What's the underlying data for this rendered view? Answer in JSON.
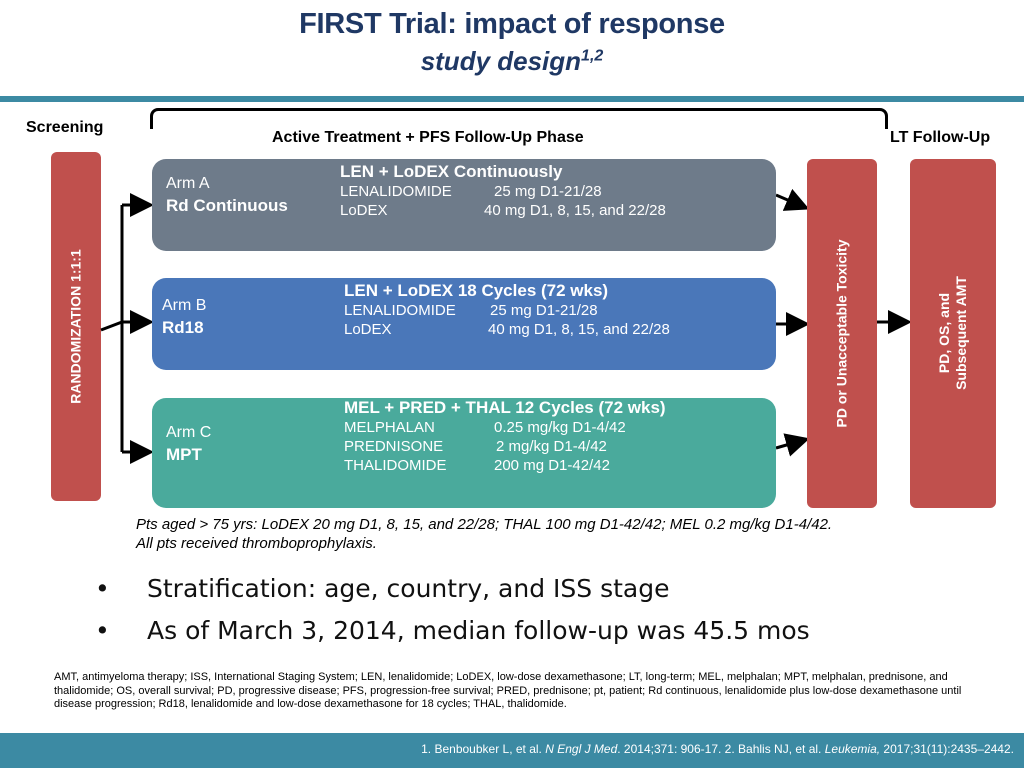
{
  "header": {
    "title": "FIRST Trial: impact of response",
    "subtitle": "study design",
    "subtitle_sup": "1,2"
  },
  "phases": {
    "screening": "Screening",
    "active": "Active Treatment + PFS Follow-Up Phase",
    "lt": "LT Follow-Up"
  },
  "randomization": "RANDOMIZATION 1:1:1",
  "pd_box": "PD or Unacceptable Toxicity",
  "lt_box": {
    "line1": "PD, OS, and",
    "line2": "Subsequent AMT"
  },
  "arms": [
    {
      "name": "Arm A",
      "short": "Rd Continuous",
      "regimen": "LEN + LoDEX Continuously",
      "drugs": [
        {
          "drug": "LENALIDOMIDE",
          "dose": "25 mg D1-21/28"
        },
        {
          "drug": "LoDEX",
          "dose": "40 mg D1, 8, 15, and 22/28"
        }
      ]
    },
    {
      "name": "Arm B",
      "short": "Rd18",
      "regimen": "LEN + LoDEX 18 Cycles (72 wks)",
      "drugs": [
        {
          "drug": "LENALIDOMIDE",
          "dose": "25 mg D1-21/28"
        },
        {
          "drug": "LoDEX",
          "dose": "40 mg D1, 8, 15, and 22/28"
        }
      ]
    },
    {
      "name": "Arm C",
      "short": "MPT",
      "regimen": "MEL + PRED + THAL 12 Cycles (72 wks)",
      "drugs": [
        {
          "drug": "MELPHALAN",
          "dose": "0.25 mg/kg D1-4/42"
        },
        {
          "drug": "PREDNISONE",
          "dose": "2 mg/kg D1-4/42"
        },
        {
          "drug": "THALIDOMIDE",
          "dose": "200 mg D1-42/42"
        }
      ]
    }
  ],
  "note": {
    "line1": "Pts aged > 75 yrs: LoDEX 20 mg D1, 8, 15, and 22/28; THAL 100 mg D1-42/42; MEL 0.2 mg/kg D1-4/42.",
    "line2": "All pts received thromboprophylaxis."
  },
  "bullets": [
    "Stratification: age, country, and ISS stage",
    "As of March 3, 2014, median follow-up was 45.5 mos"
  ],
  "abbreviations": "AMT, antimyeloma therapy; ISS, International Staging System; LEN, lenalidomide; LoDEX, low-dose dexamethasone; LT, long-term; MEL, melphalan; MPT, melphalan, prednisone, and thalidomide; OS, overall survival; PD, progressive disease; PFS, progression-free survival; PRED, prednisone; pt, patient; Rd continuous, lenalidomide plus low-dose dexamethasone until disease progression; Rd18, lenalidomide and low-dose dexamethasone for 18 cycles; THAL, thalidomide.",
  "references": {
    "ref1_pre": "1. Benboubker L, et al. ",
    "ref1_journal": "N Engl J Med",
    "ref1_post": ". 2014;371: 906-17. 2. Bahlis NJ, et al. ",
    "ref2_journal": "Leukemia,",
    "ref2_post": " 2017;31(11):2435–2442."
  },
  "colors": {
    "title": "#1f3864",
    "bar": "#3c8aa3",
    "red_box": "#c0504d",
    "arm_a": "#6e7b8a",
    "arm_b": "#4a77b9",
    "arm_c": "#4aaa9c"
  }
}
